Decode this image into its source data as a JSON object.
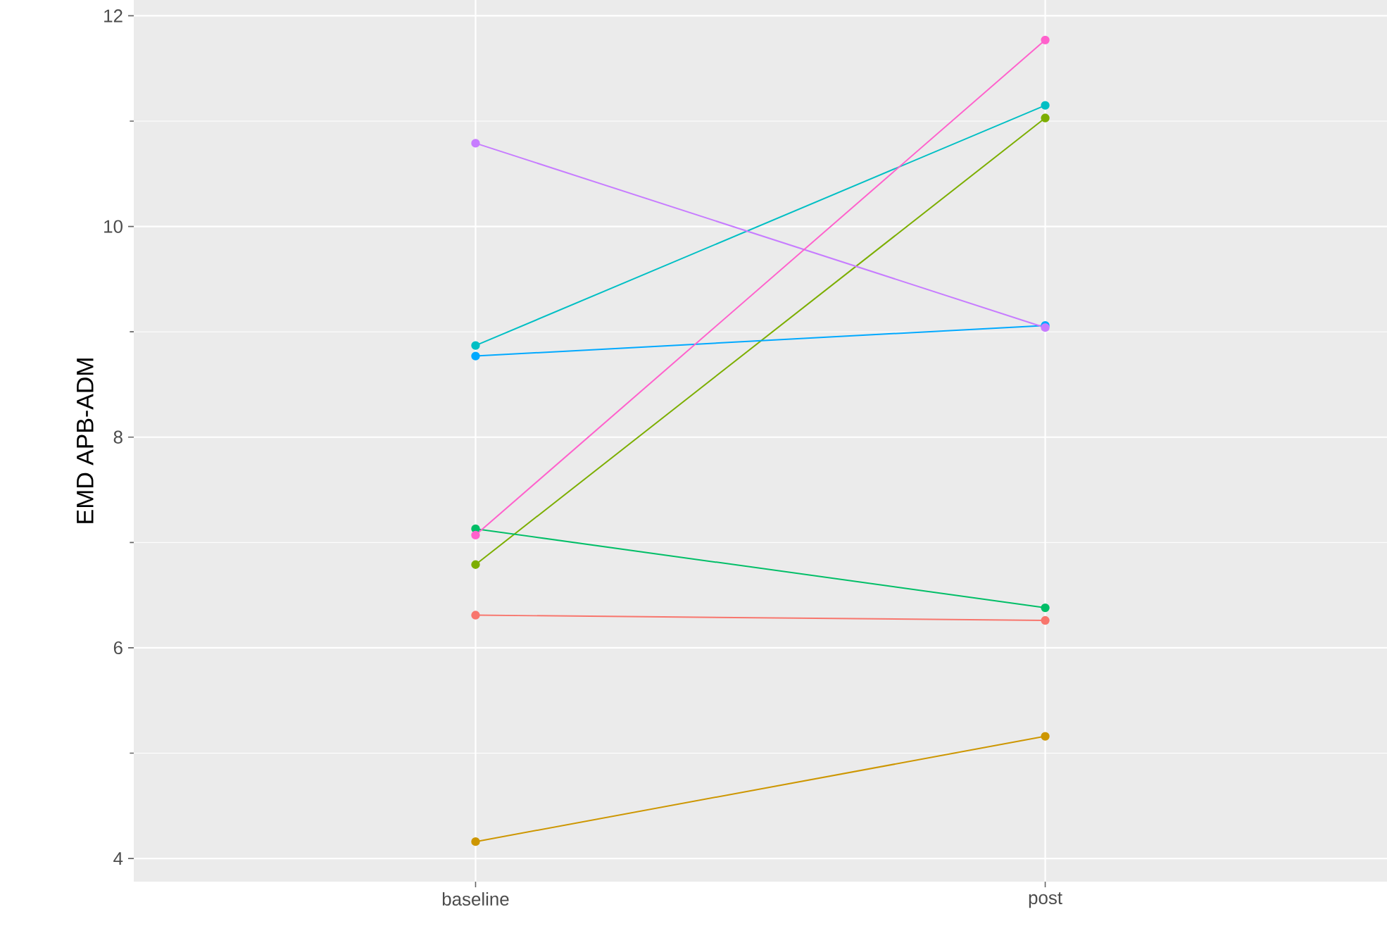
{
  "chart_data": {
    "type": "line",
    "ylabel": "EMD APB-ADM",
    "categories": [
      "baseline",
      "post"
    ],
    "series": [
      {
        "color": "#F8766D",
        "values": [
          6.31,
          6.26
        ]
      },
      {
        "color": "#CD9600",
        "values": [
          4.16,
          5.16
        ]
      },
      {
        "color": "#7CAE00",
        "values": [
          6.79,
          11.03
        ]
      },
      {
        "color": "#00BE67",
        "values": [
          7.13,
          6.38
        ]
      },
      {
        "color": "#00BFC4",
        "values": [
          8.87,
          11.15
        ]
      },
      {
        "color": "#00A9FF",
        "values": [
          8.77,
          9.06
        ]
      },
      {
        "color": "#C77CFF",
        "values": [
          10.79,
          9.04
        ]
      },
      {
        "color": "#FF61CC",
        "values": [
          7.07,
          11.77
        ]
      }
    ],
    "ylim": [
      3.78,
      12.15
    ],
    "yticks": [
      4,
      6,
      8,
      10,
      12
    ],
    "grid": true,
    "marker": "circle"
  }
}
